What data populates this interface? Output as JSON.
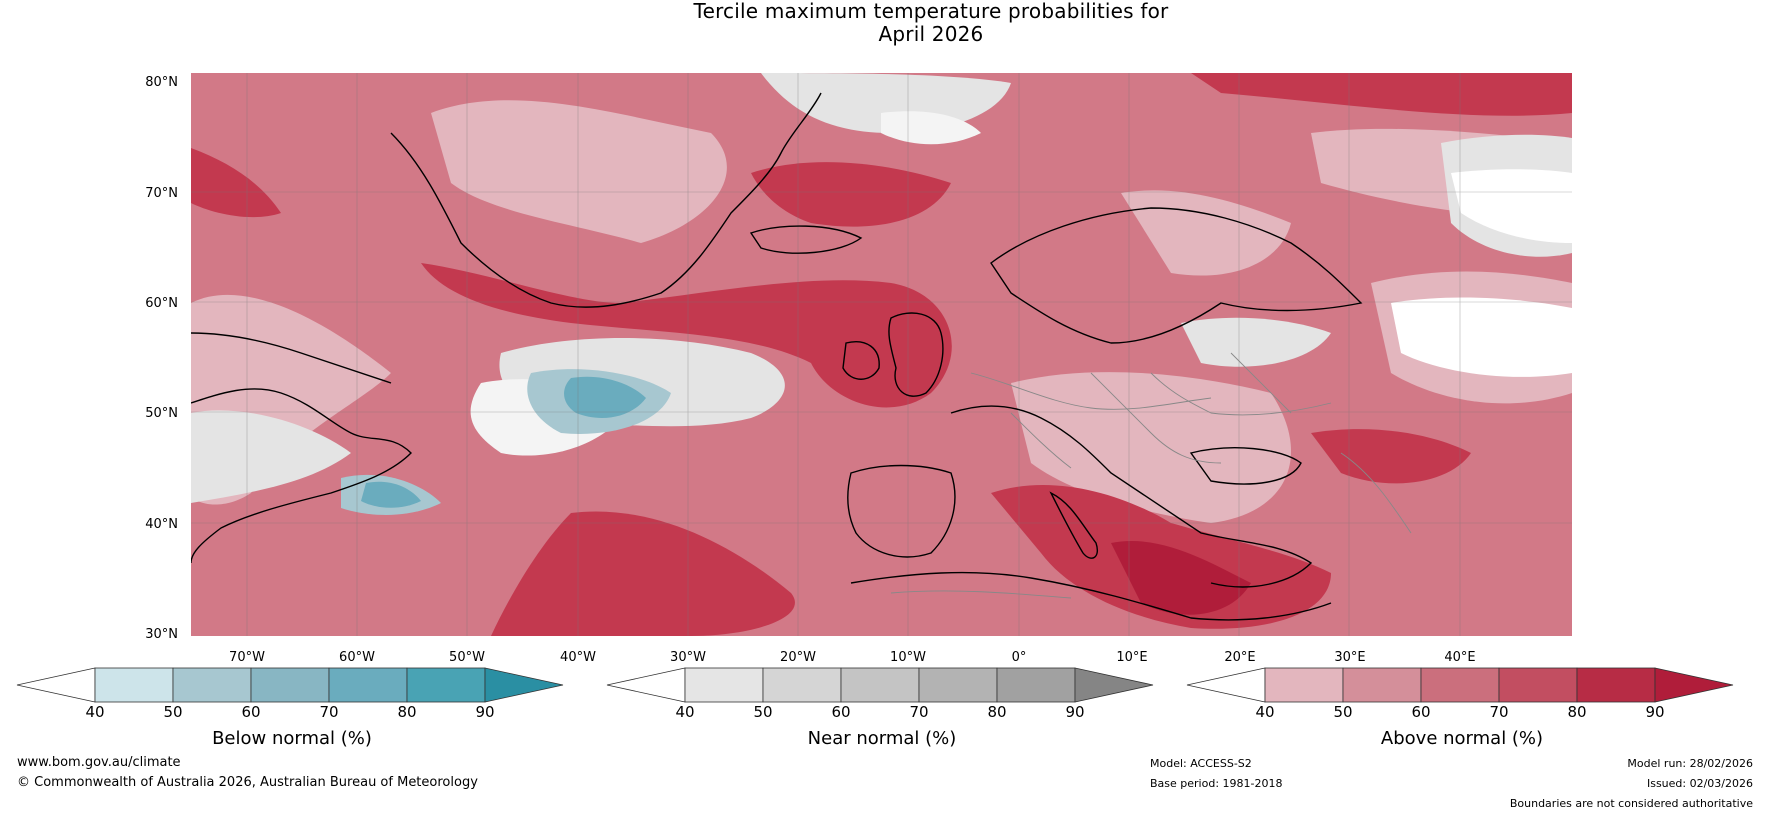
{
  "title": {
    "line1": "Tercile maximum temperature probabilities for",
    "line2": "April 2026"
  },
  "map": {
    "lat_labels": [
      "80°N",
      "70°N",
      "60°N",
      "50°N",
      "40°N",
      "30°N"
    ],
    "lon_labels": [
      "70°W",
      "60°W",
      "50°W",
      "40°W",
      "30°W",
      "20°W",
      "10°W",
      "0°",
      "10°E",
      "20°E",
      "30°E",
      "40°E"
    ],
    "colors": {
      "above_dominant": "#d97b87",
      "above_strong": "#c3394f",
      "near_light": "#e4e4e4",
      "below_mid": "#6aacbe",
      "coast": "#000000",
      "border": "#888888"
    }
  },
  "colorbars": {
    "below": {
      "label": "Below normal (%)",
      "ticks": [
        "40",
        "50",
        "60",
        "70",
        "80",
        "90"
      ],
      "colors": [
        "#ffffff",
        "#cde4ea",
        "#a7c7d0",
        "#88b6c3",
        "#6aacbe",
        "#49a3b4",
        "#2a8fa3"
      ]
    },
    "near": {
      "label": "Near normal (%)",
      "ticks": [
        "40",
        "50",
        "60",
        "70",
        "80",
        "90"
      ],
      "colors": [
        "#ffffff",
        "#e5e5e5",
        "#d5d5d5",
        "#c4c4c4",
        "#b3b3b3",
        "#a1a1a1",
        "#858585"
      ]
    },
    "above": {
      "label": "Above normal (%)",
      "ticks": [
        "40",
        "50",
        "60",
        "70",
        "80",
        "90"
      ],
      "colors": [
        "#ffffff",
        "#e3b6be",
        "#d48f9a",
        "#cb6f7d",
        "#c24e61",
        "#b72c45",
        "#b01d3a"
      ]
    }
  },
  "footer": {
    "website": "www.bom.gov.au/climate",
    "copyright": "© Commonwealth of Australia 2026, Australian Bureau of Meteorology",
    "model": "Model: ACCESS-S2",
    "base_period": "Base period: 1981-2018",
    "model_run": "Model run: 28/02/2026",
    "issued": "Issued: 02/03/2026",
    "disclaimer": "Boundaries are not considered authoritative"
  }
}
